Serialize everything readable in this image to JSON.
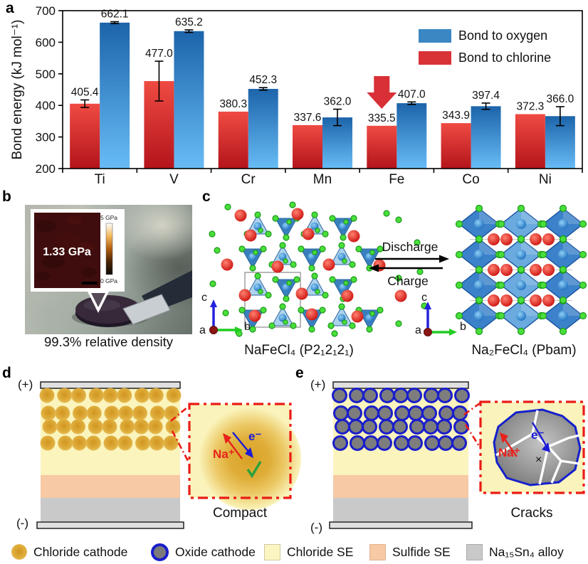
{
  "figure": {
    "background": "#ffffff"
  },
  "panel_labels": {
    "a": "a",
    "b": "b",
    "c": "c",
    "d": "d",
    "e": "e"
  },
  "chart_data": {
    "type": "bar",
    "title": "",
    "categories": [
      "Ti",
      "V",
      "Cr",
      "Mn",
      "Fe",
      "Co",
      "Ni"
    ],
    "series": [
      {
        "name": "Bond to oxygen",
        "side": "right",
        "values": [
          662.1,
          635.2,
          452.3,
          362.0,
          407.0,
          397.4,
          366.0
        ],
        "errors": [
          3,
          4,
          4,
          26,
          4,
          10,
          30
        ],
        "legend_color": "#3a87c4",
        "gradient_top": "#1d64aa",
        "gradient_bottom": "#67bcf6"
      },
      {
        "name": "Bond to chlorine",
        "side": "left",
        "values": [
          405.4,
          477.0,
          380.3,
          337.6,
          335.5,
          343.9,
          372.3
        ],
        "errors": [
          12,
          63,
          0,
          0,
          0,
          0,
          0
        ],
        "legend_color": "#d93338",
        "gradient_top": "#ef4b43",
        "gradient_bottom": "#b4141b"
      }
    ],
    "ylabel": "Bond energy (kJ mol⁻¹)",
    "ylim": [
      200,
      700
    ],
    "yticks": [
      200,
      300,
      400,
      500,
      600,
      700
    ],
    "grid": false,
    "legend_position": "top-right",
    "annotation": {
      "type": "down-arrow",
      "category": "Fe",
      "color": "#d93037"
    }
  },
  "panel_b": {
    "inset_value": "1.33 GPa",
    "scale_max": "5 GPa",
    "scale_min": "0 GPa",
    "caption": "99.3% relative density"
  },
  "panel_c": {
    "discharge_label": "Discharge",
    "charge_label": "Charge",
    "left_caption": "NaFeCl₄ (P2₁2₁2₁)",
    "right_caption": "Na₂FeCl₄ (Pbam)",
    "axis_a": "a",
    "axis_b": "b",
    "axis_c": "c"
  },
  "panel_d": {
    "positive": "(+)",
    "negative": "(-)",
    "na_ion": "Na⁺",
    "electron": "e⁻",
    "caption": "Compact"
  },
  "panel_e": {
    "positive": "(+)",
    "negative": "(-)",
    "na_ion": "Na⁺",
    "electron": "e⁻",
    "x_mark": "×",
    "caption": "Cracks"
  },
  "bottom_legend": [
    {
      "label": "Chloride cathode"
    },
    {
      "label": "Oxide cathode"
    },
    {
      "label": "Chloride SE"
    },
    {
      "label": "Sulfide SE"
    },
    {
      "label": "Na₁₅Sn₄ alloy"
    }
  ]
}
